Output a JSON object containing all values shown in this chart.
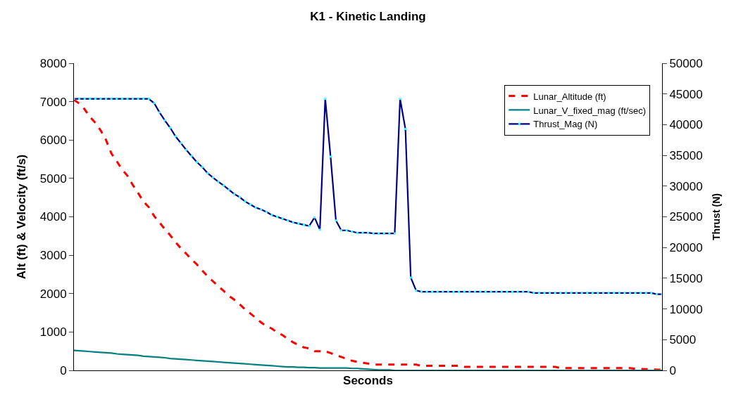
{
  "chart_data": {
    "type": "line",
    "title": "K1 - Kinetic Landing",
    "xlabel": "Seconds",
    "ylabel": "Alt (ft) & Velocity (ft/s)",
    "y2label": "Thrust (N)",
    "categories": [
      null,
      null,
      null,
      null,
      null,
      null,
      null,
      null,
      null,
      null,
      null,
      null,
      null,
      null,
      null,
      null,
      null,
      null,
      null,
      null,
      null,
      null,
      null,
      null,
      null,
      null,
      null,
      null,
      null,
      null,
      null,
      null,
      null,
      null,
      null,
      null,
      null,
      null,
      null,
      null,
      null,
      null,
      null,
      null,
      null,
      null,
      null,
      null,
      null,
      null,
      null,
      null,
      null,
      null,
      null,
      null,
      null,
      null,
      null,
      null,
      null,
      null,
      null,
      null,
      null,
      null,
      null,
      null,
      null,
      null,
      null,
      null,
      null,
      null,
      null,
      null,
      null,
      null,
      null,
      null,
      null,
      null,
      null,
      null,
      null,
      null,
      null,
      null,
      null,
      null,
      null,
      null,
      null,
      null,
      null,
      null,
      null,
      null,
      null,
      null,
      null,
      null,
      null,
      null,
      null,
      null,
      null,
      null,
      null,
      null,
      null
    ],
    "series": [
      {
        "name": "Lunar_Altitude (ft)",
        "color": "#ff0000",
        "line_style": "dashed",
        "marker": "none",
        "values": [
          7050,
          6950,
          6800,
          6600,
          6450,
          6250,
          6000,
          5650,
          5450,
          5230,
          5070,
          4830,
          4620,
          4400,
          4250,
          4020,
          3850,
          3680,
          3520,
          3340,
          3180,
          3040,
          2890,
          2760,
          2600,
          2450,
          2320,
          2190,
          2070,
          1940,
          1840,
          1720,
          1590,
          1480,
          1370,
          1250,
          1150,
          1090,
          990,
          920,
          820,
          730,
          660,
          600,
          570,
          500,
          500,
          500,
          450,
          400,
          350,
          300,
          250,
          220,
          200,
          180,
          150,
          150,
          150,
          150,
          150,
          150,
          150,
          150,
          150,
          120,
          120,
          120,
          120,
          120,
          120,
          120,
          120,
          90,
          90,
          90,
          90,
          90,
          90,
          90,
          90,
          90,
          90,
          90,
          90,
          90,
          90,
          90,
          90,
          90,
          90,
          60,
          60,
          60,
          60,
          60,
          60,
          60,
          60,
          60,
          60,
          60,
          60,
          60,
          60,
          40,
          40,
          30,
          30,
          20,
          20
        ]
      },
      {
        "name": "Lunar_V_fixed_mag (ft/sec)",
        "color": "#008080",
        "line_style": "solid",
        "marker": "none",
        "values": [
          520,
          510,
          500,
          490,
          480,
          470,
          460,
          450,
          430,
          420,
          410,
          400,
          390,
          370,
          360,
          350,
          340,
          330,
          310,
          300,
          290,
          280,
          270,
          260,
          250,
          240,
          230,
          220,
          210,
          200,
          190,
          180,
          170,
          160,
          150,
          140,
          130,
          120,
          110,
          100,
          90,
          90,
          80,
          80,
          70,
          70,
          60,
          60,
          60,
          60,
          60,
          60,
          50,
          50,
          40,
          30,
          20,
          10,
          10,
          10,
          0,
          0,
          0,
          0,
          0,
          0,
          0,
          0,
          0,
          0,
          0,
          0,
          0,
          0,
          0,
          0,
          0,
          0,
          0,
          0,
          0,
          0,
          0,
          0,
          0,
          0,
          0,
          0,
          0,
          0,
          0,
          0,
          0,
          0,
          0,
          0,
          0,
          0,
          0,
          0,
          0,
          0,
          0,
          0,
          0,
          0,
          0,
          0,
          0,
          0,
          0
        ]
      },
      {
        "name": "Thrust_Mag (N)",
        "color": "#000080",
        "colors": [
          "#33ffff",
          "#33ffff",
          "#33ffff",
          "#33ffff",
          "#33ffff",
          "#33ffff",
          "#33ffff",
          "#33ffff",
          "#33ffff",
          "#33ffff",
          "#33ffff",
          "#33ffff",
          "#33ffff",
          "#33ffff",
          "#33ffff",
          "#33ffff",
          "#33ffff",
          "#33ffff",
          "#33ffff",
          "#33ffff",
          "#33ffff",
          "#33ffff",
          "#33ffff",
          "#33ffff",
          "#33ffff",
          "#33ffff",
          "#33ffff",
          "#33ffff",
          "#33ffff",
          "#33ffff",
          "#33ffff",
          "#33ffff",
          "#33ffff",
          "#33ffff",
          "#33ffff",
          "#33ffff",
          "#33ffff",
          "#33ffff",
          "#33ffff",
          "#33ffff",
          "#33ffff",
          "#33ffff",
          "#33ffff",
          "#33ffff",
          "#33ffff",
          "#33ffff",
          "#33ffff",
          "#33ffff",
          "#33ffff",
          "#33ffff",
          "#33ffff",
          "#33ffff",
          "#33ffff",
          "#33ffff",
          "#33ffff",
          "#33ffff",
          "#33ffff",
          "#33ffff",
          "#33ffff",
          "#33ffff",
          "#33ffff",
          "#33ffff",
          "#33ffff",
          "#33ffff",
          "#33ffff",
          "#33ffff",
          "#33ffff",
          "#33ffff",
          "#33ffff",
          "#33ffff",
          "#33ffff",
          "#33ffff",
          "#33ffff",
          "#33ffff",
          "#33ffff",
          "#33ffff",
          "#33ffff",
          "#33ffff",
          "#33ffff",
          "#33ffff",
          "#33ffff",
          "#33ffff",
          "#33ffff",
          "#33ffff",
          "#33ffff",
          "#33ffff",
          "#33ffff",
          "#33ffff",
          "#33ffff",
          "#33ffff",
          "#33ffff",
          "#33ffff",
          "#33ffff",
          "#33ffff",
          "#33ffff",
          "#33ffff",
          "#33ffff",
          "#33ffff",
          "#33ffff",
          "#33ffff",
          "#33ffff",
          "#33ffff",
          "#33ffff",
          "#33ffff",
          "#33ffff",
          "#33ffff",
          "#33ffff",
          "#33ffff",
          "#33ffff",
          "#33ffff",
          "#33ffff"
        ],
        "line_style": "solid",
        "marker": "square",
        "axis": "y2",
        "values": [
          44200,
          44200,
          44200,
          44200,
          44200,
          44200,
          44200,
          44200,
          44200,
          44200,
          44200,
          44200,
          44200,
          44200,
          44200,
          43500,
          42000,
          40700,
          39500,
          38100,
          37000,
          35900,
          34900,
          33900,
          33100,
          32100,
          31400,
          30700,
          30100,
          29400,
          28700,
          28200,
          27500,
          27000,
          26500,
          26200,
          25800,
          25300,
          25000,
          24700,
          24400,
          24100,
          23900,
          23700,
          23500,
          24900,
          22900,
          44200,
          34800,
          24400,
          22800,
          22800,
          22600,
          22400,
          22400,
          22400,
          22300,
          22300,
          22300,
          22300,
          22300,
          44200,
          39300,
          15100,
          13000,
          12800,
          12800,
          12800,
          12800,
          12800,
          12800,
          12800,
          12800,
          12800,
          12800,
          12800,
          12800,
          12800,
          12800,
          12800,
          12800,
          12800,
          12800,
          12800,
          12800,
          12800,
          12600,
          12600,
          12600,
          12600,
          12600,
          12600,
          12600,
          12600,
          12600,
          12600,
          12600,
          12600,
          12600,
          12600,
          12600,
          12600,
          12600,
          12600,
          12600,
          12600,
          12600,
          12600,
          12600,
          12400,
          12400
        ]
      }
    ],
    "ylim": [
      0,
      8000
    ],
    "yticks": [
      0,
      1000,
      2000,
      3000,
      4000,
      5000,
      6000,
      7000,
      8000
    ],
    "y2lim": [
      0,
      50000
    ],
    "y2ticks": [
      0,
      5000,
      10000,
      15000,
      20000,
      25000,
      30000,
      35000,
      40000,
      45000,
      50000
    ],
    "tick_labels": "y",
    "legend": "top right"
  }
}
